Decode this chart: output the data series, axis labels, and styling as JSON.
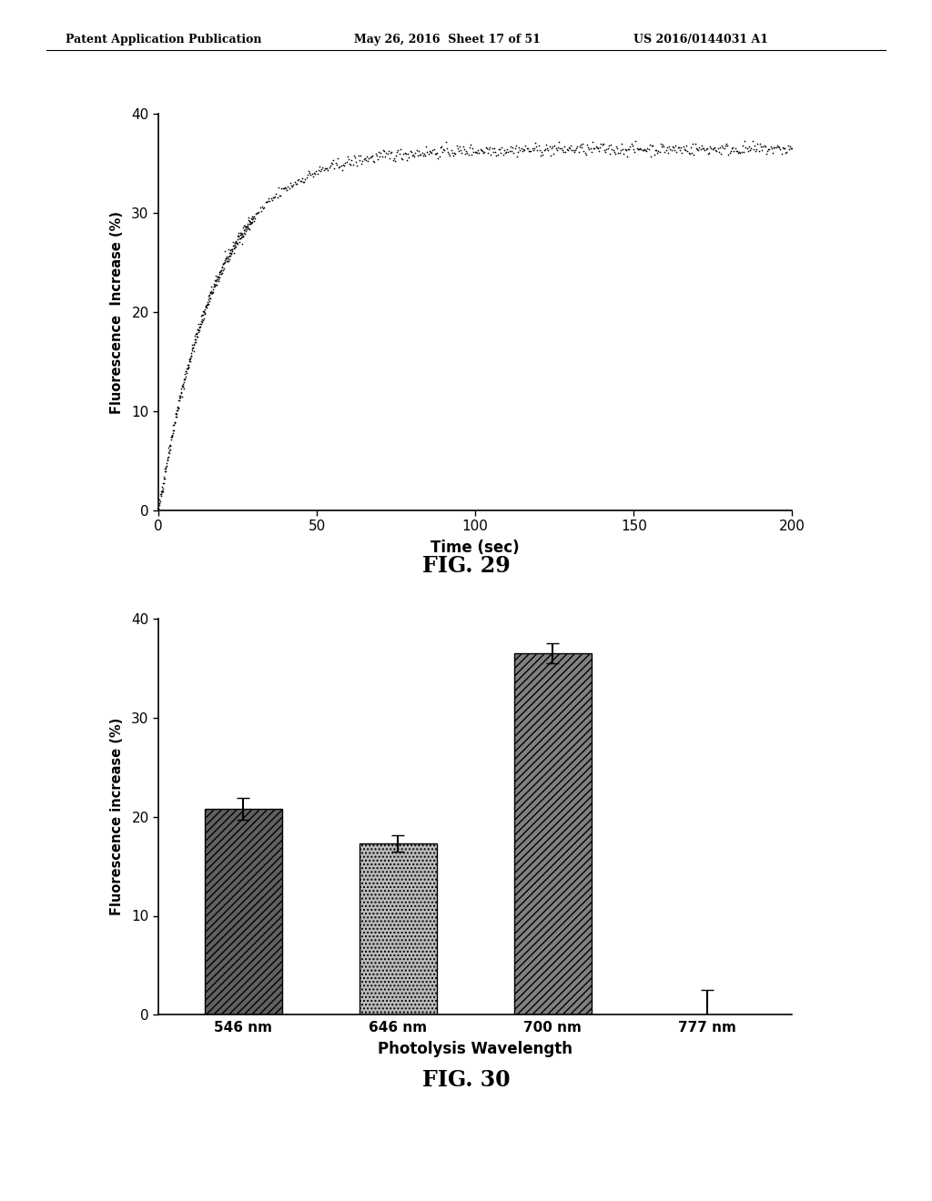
{
  "header_left": "Patent Application Publication",
  "header_mid": "May 26, 2016  Sheet 17 of 51",
  "header_right": "US 2016/0144031 A1",
  "fig29_title": "FIG. 29",
  "fig29_xlabel": "Time (sec)",
  "fig29_ylabel": "Fluorescence  Increase (%)",
  "fig29_xlim": [
    0,
    200
  ],
  "fig29_ylim": [
    0,
    40
  ],
  "fig29_xticks": [
    0,
    50,
    100,
    150,
    200
  ],
  "fig29_yticks": [
    0,
    10,
    20,
    30,
    40
  ],
  "fig29_curve_a": 36.5,
  "fig29_curve_b": 0.055,
  "fig30_title": "FIG. 30",
  "fig30_xlabel": "Photolysis Wavelength",
  "fig30_ylabel": "Fluorescence increase (%)",
  "fig30_categories": [
    "546 nm",
    "646 nm",
    "700 nm",
    "777 nm"
  ],
  "fig30_values": [
    20.8,
    17.3,
    36.5,
    0.3
  ],
  "fig30_errors": [
    1.1,
    0.8,
    1.0,
    2.2
  ],
  "fig30_ylim": [
    0,
    40
  ],
  "fig30_yticks": [
    0,
    10,
    20,
    30,
    40
  ],
  "background_color": "#ffffff",
  "text_color": "#000000"
}
